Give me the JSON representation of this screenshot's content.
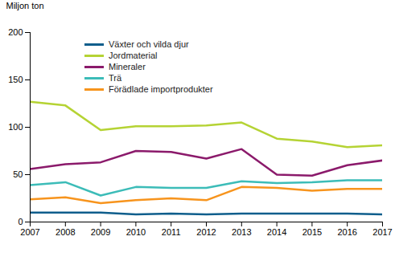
{
  "chart_data": {
    "type": "line",
    "y_label": "Miljon ton",
    "x": [
      2007,
      2008,
      2009,
      2010,
      2011,
      2012,
      2013,
      2014,
      2015,
      2016,
      2017
    ],
    "xlim": [
      2007,
      2017
    ],
    "xticks": [
      2007,
      2008,
      2009,
      2010,
      2011,
      2012,
      2013,
      2014,
      2015,
      2016,
      2017
    ],
    "ylim": [
      0,
      200
    ],
    "yticks": [
      0,
      50,
      100,
      150,
      200
    ],
    "grid": false,
    "legend": "upper left",
    "series": [
      {
        "name": "Växter och vilda djur",
        "color": "#0f5e8c",
        "values": [
          10,
          10,
          10,
          8,
          9,
          8,
          9,
          9,
          9,
          9,
          8
        ]
      },
      {
        "name": "Jordmaterial",
        "color": "#b5d334",
        "values": [
          127,
          123,
          97,
          101,
          101,
          102,
          105,
          88,
          85,
          79,
          81
        ]
      },
      {
        "name": "Mineraler",
        "color": "#8b1a6b",
        "values": [
          56,
          61,
          63,
          75,
          74,
          67,
          77,
          50,
          49,
          60,
          65
        ]
      },
      {
        "name": "Trä",
        "color": "#3cbcb8",
        "values": [
          39,
          42,
          28,
          37,
          36,
          36,
          43,
          41,
          42,
          44,
          44
        ]
      },
      {
        "name": "Förädlade importprodukter",
        "color": "#f7941d",
        "values": [
          24,
          26,
          20,
          23,
          25,
          23,
          37,
          36,
          33,
          35,
          35
        ]
      }
    ]
  }
}
